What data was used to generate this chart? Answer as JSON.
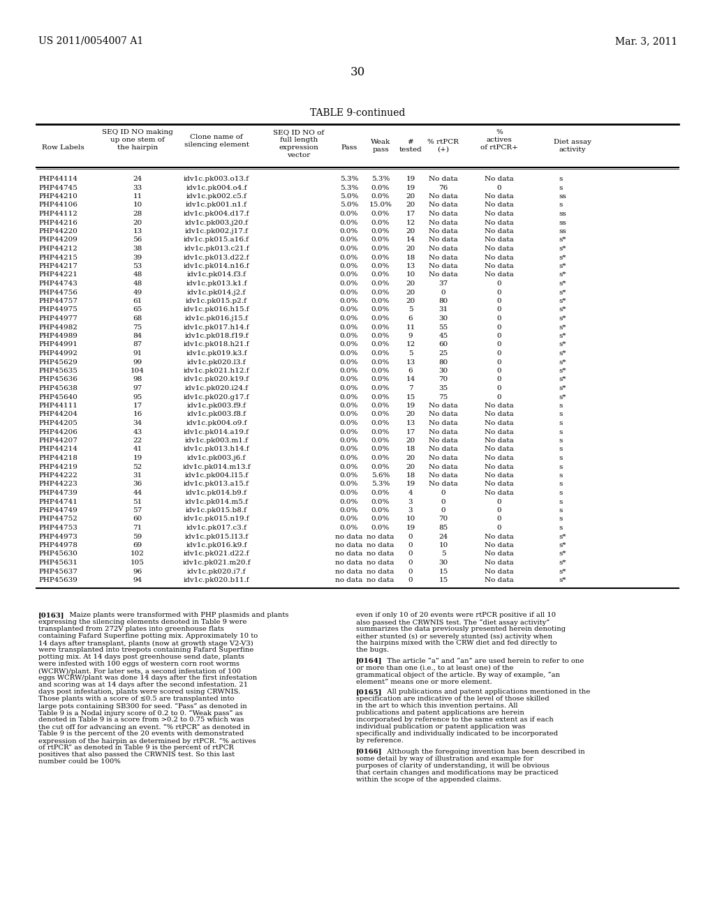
{
  "header_left": "US 2011/0054007 A1",
  "header_right": "Mar. 3, 2011",
  "page_number": "30",
  "table_title": "TABLE 9-continued",
  "col_headers": {
    "row_labels": "Row Labels",
    "seq_id_stem": [
      "SEQ ID NO making",
      "up one stem of",
      "the hairpin"
    ],
    "clone_name": [
      "Clone name of",
      "silencing element"
    ],
    "seq_id_vector": [
      "SEQ ID NO of",
      "full length",
      "expression",
      "vector"
    ],
    "pass": "Pass",
    "weak_pass": [
      "Weak",
      "pass"
    ],
    "num_tested": [
      "#",
      "tested"
    ],
    "pct_rtpcr": [
      "% rtPCR",
      "(+)"
    ],
    "pct_actives": [
      "%",
      "actives",
      "of rtPCR+"
    ],
    "diet_assay": [
      "Diet assay",
      "activity"
    ]
  },
  "rows": [
    [
      "PHP44114",
      "24",
      "idv1c.pk003.o13.f",
      "",
      "5.3%",
      "5.3%",
      "19",
      "No data",
      "No data",
      "s"
    ],
    [
      "PHP44745",
      "33",
      "idv1c.pk004.o4.f",
      "",
      "5.3%",
      "0.0%",
      "19",
      "76",
      "0",
      "s"
    ],
    [
      "PHP44210",
      "11",
      "idv1c.pk002.c5.f",
      "",
      "5.0%",
      "0.0%",
      "20",
      "No data",
      "No data",
      "ss"
    ],
    [
      "PHP44106",
      "10",
      "idv1c.pk001.n1.f",
      "",
      "5.0%",
      "15.0%",
      "20",
      "No data",
      "No data",
      "s"
    ],
    [
      "PHP44112",
      "28",
      "idv1c.pk004.d17.f",
      "",
      "0.0%",
      "0.0%",
      "17",
      "No data",
      "No data",
      "ss"
    ],
    [
      "PHP44216",
      "20",
      "idv1c.pk003.j20.f",
      "",
      "0.0%",
      "0.0%",
      "12",
      "No data",
      "No data",
      "ss"
    ],
    [
      "PHP44220",
      "13",
      "idv1c.pk002.j17.f",
      "",
      "0.0%",
      "0.0%",
      "20",
      "No data",
      "No data",
      "ss"
    ],
    [
      "PHP44209",
      "56",
      "idv1c.pk015.a16.f",
      "",
      "0.0%",
      "0.0%",
      "14",
      "No data",
      "No data",
      "s*"
    ],
    [
      "PHP44212",
      "38",
      "idv1c.pk013.c21.f",
      "",
      "0.0%",
      "0.0%",
      "20",
      "No data",
      "No data",
      "s*"
    ],
    [
      "PHP44215",
      "39",
      "idv1c.pk013.d22.f",
      "",
      "0.0%",
      "0.0%",
      "18",
      "No data",
      "No data",
      "s*"
    ],
    [
      "PHP44217",
      "53",
      "idv1c.pk014.n16.f",
      "",
      "0.0%",
      "0.0%",
      "13",
      "No data",
      "No data",
      "s*"
    ],
    [
      "PHP44221",
      "48",
      "idv1c.pk014.f3.f",
      "",
      "0.0%",
      "0.0%",
      "10",
      "No data",
      "No data",
      "s*"
    ],
    [
      "PHP44743",
      "48",
      "idv1c.pk013.k1.f",
      "",
      "0.0%",
      "0.0%",
      "20",
      "37",
      "0",
      "s*"
    ],
    [
      "PHP44756",
      "49",
      "idv1c.pk014.j2.f",
      "",
      "0.0%",
      "0.0%",
      "20",
      "0",
      "0",
      "s*"
    ],
    [
      "PHP44757",
      "61",
      "idv1c.pk015.p2.f",
      "",
      "0.0%",
      "0.0%",
      "20",
      "80",
      "0",
      "s*"
    ],
    [
      "PHP44975",
      "65",
      "idv1c.pk016.h15.f",
      "",
      "0.0%",
      "0.0%",
      "5",
      "31",
      "0",
      "s*"
    ],
    [
      "PHP44977",
      "68",
      "idv1c.pk016.j15.f",
      "",
      "0.0%",
      "0.0%",
      "6",
      "30",
      "0",
      "s*"
    ],
    [
      "PHP44982",
      "75",
      "idv1c.pk017.h14.f",
      "",
      "0.0%",
      "0.0%",
      "11",
      "55",
      "0",
      "s*"
    ],
    [
      "PHP44989",
      "84",
      "idv1c.pk018.f19.f",
      "",
      "0.0%",
      "0.0%",
      "9",
      "45",
      "0",
      "s*"
    ],
    [
      "PHP44991",
      "87",
      "idv1c.pk018.h21.f",
      "",
      "0.0%",
      "0.0%",
      "12",
      "60",
      "0",
      "s*"
    ],
    [
      "PHP44992",
      "91",
      "idv1c.pk019.k3.f",
      "",
      "0.0%",
      "0.0%",
      "5",
      "25",
      "0",
      "s*"
    ],
    [
      "PHP45629",
      "99",
      "idv1c.pk020.l3.f",
      "",
      "0.0%",
      "0.0%",
      "13",
      "80",
      "0",
      "s*"
    ],
    [
      "PHP45635",
      "104",
      "idv1c.pk021.h12.f",
      "",
      "0.0%",
      "0.0%",
      "6",
      "30",
      "0",
      "s*"
    ],
    [
      "PHP45636",
      "98",
      "idv1c.pk020.k19.f",
      "",
      "0.0%",
      "0.0%",
      "14",
      "70",
      "0",
      "s*"
    ],
    [
      "PHP45638",
      "97",
      "idv1c.pk020.i24.f",
      "",
      "0.0%",
      "0.0%",
      "7",
      "35",
      "0",
      "s*"
    ],
    [
      "PHP45640",
      "95",
      "idv1c.pk020.g17.f",
      "",
      "0.0%",
      "0.0%",
      "15",
      "75",
      "0",
      "s*"
    ],
    [
      "PHP44111",
      "17",
      "idv1c.pk003.f9.f",
      "",
      "0.0%",
      "0.0%",
      "19",
      "No data",
      "No data",
      "s"
    ],
    [
      "PHP44204",
      "16",
      "idv1c.pk003.f8.f",
      "",
      "0.0%",
      "0.0%",
      "20",
      "No data",
      "No data",
      "s"
    ],
    [
      "PHP44205",
      "34",
      "idv1c.pk004.o9.f",
      "",
      "0.0%",
      "0.0%",
      "13",
      "No data",
      "No data",
      "s"
    ],
    [
      "PHP44206",
      "43",
      "idv1c.pk014.a19.f",
      "",
      "0.0%",
      "0.0%",
      "17",
      "No data",
      "No data",
      "s"
    ],
    [
      "PHP44207",
      "22",
      "idv1c.pk003.m1.f",
      "",
      "0.0%",
      "0.0%",
      "20",
      "No data",
      "No data",
      "s"
    ],
    [
      "PHP44214",
      "41",
      "idv1c.pk013.h14.f",
      "",
      "0.0%",
      "0.0%",
      "18",
      "No data",
      "No data",
      "s"
    ],
    [
      "PHP44218",
      "19",
      "idv1c.pk003.j6.f",
      "",
      "0.0%",
      "0.0%",
      "20",
      "No data",
      "No data",
      "s"
    ],
    [
      "PHP44219",
      "52",
      "idv1c.pk014.m13.f",
      "",
      "0.0%",
      "0.0%",
      "20",
      "No data",
      "No data",
      "s"
    ],
    [
      "PHP44222",
      "31",
      "idv1c.pk004.l15.f",
      "",
      "0.0%",
      "5.6%",
      "18",
      "No data",
      "No data",
      "s"
    ],
    [
      "PHP44223",
      "36",
      "idv1c.pk013.a15.f",
      "",
      "0.0%",
      "5.3%",
      "19",
      "No data",
      "No data",
      "s"
    ],
    [
      "PHP44739",
      "44",
      "idv1c.pk014.b9.f",
      "",
      "0.0%",
      "0.0%",
      "4",
      "0",
      "No data",
      "s"
    ],
    [
      "PHP44741",
      "51",
      "idv1c.pk014.m5.f",
      "",
      "0.0%",
      "0.0%",
      "3",
      "0",
      "0",
      "s"
    ],
    [
      "PHP44749",
      "57",
      "idv1c.pk015.b8.f",
      "",
      "0.0%",
      "0.0%",
      "3",
      "0",
      "0",
      "s"
    ],
    [
      "PHP44752",
      "60",
      "idv1c.pk015.n19.f",
      "",
      "0.0%",
      "0.0%",
      "10",
      "70",
      "0",
      "s"
    ],
    [
      "PHP44753",
      "71",
      "idv1c.pk017.c3.f",
      "",
      "0.0%",
      "0.0%",
      "19",
      "85",
      "0",
      "s"
    ],
    [
      "PHP44973",
      "59",
      "idv1c.pk015.l13.f",
      "",
      "no data",
      "no data",
      "0",
      "24",
      "No data",
      "s*"
    ],
    [
      "PHP44978",
      "69",
      "idv1c.pk016.k9.f",
      "",
      "no data",
      "no data",
      "0",
      "10",
      "No data",
      "s*"
    ],
    [
      "PHP45630",
      "102",
      "idv1c.pk021.d22.f",
      "",
      "no data",
      "no data",
      "0",
      "5",
      "No data",
      "s*"
    ],
    [
      "PHP45631",
      "105",
      "idv1c.pk021.m20.f",
      "",
      "no data",
      "no data",
      "0",
      "30",
      "No data",
      "s*"
    ],
    [
      "PHP45637",
      "96",
      "idv1c.pk020.i7.f",
      "",
      "no data",
      "no data",
      "0",
      "15",
      "No data",
      "s*"
    ],
    [
      "PHP45639",
      "94",
      "idv1c.pk020.b11.f",
      "",
      "no data",
      "no data",
      "0",
      "15",
      "No data",
      "s*"
    ]
  ],
  "paragraphs": [
    {
      "tag": "[0163]",
      "text": "Maize plants were transformed with PHP plasmids and plants expressing the silencing elements denoted in Table 9 were transplanted from 272V plates into greenhouse flats containing Fafard Superfine potting mix. Approximately 10 to 14 days after transplant, plants (now at growth stage V2-V3) were transplanted into treepots containing Fafard Superfine potting mix. At 14 days post greenhouse send date, plants were infested with 100 eggs of western corn root worms (WCRW)/plant. For later sets, a second infestation of 100 eggs WCRW/plant was done 14 days after the first infestation and scoring was at 14 days after the second infestation. 21 days post infestation, plants were scored using CRWNIS. Those plants with a score of ≤0.5 are transplanted into large pots containing SB300 for seed. “Pass” as denoted in Table 9 is a Nodal injury score of 0.2 to 0. “Weak pass” as denoted in Table 9 is a score from >0.2 to 0.75 which was the cut off for advancing an event. “% rtPCR” as denoted in Table 9 is the percent of the 20 events with demonstrated expression of the hairpin as determined by rtPCR. “% actives of rtPCR” as denoted in Table 9 is the percent of rtPCR positives that also passed the CRWNIS test. So this last number could be 100%"
    },
    {
      "tag": "",
      "text": "even if only 10 of 20 events were rtPCR positive if all 10 also passed the CRWNIS test. The “diet assay activity” summarizes the data previously presented herein denoting either stunted (s) or severely stunted (ss) activity when the hairpins mixed with the CRW diet and fed directly to the bugs."
    },
    {
      "tag": "[0164]",
      "text": "The article “a” and “an” are used herein to refer to one or more than one (i.e., to at least one) of the grammatical object of the article. By way of example, “an element” means one or more element."
    },
    {
      "tag": "[0165]",
      "text": "All publications and patent applications mentioned in the specification are indicative of the level of those skilled in the art to which this invention pertains. All publications and patent applications are herein incorporated by reference to the same extent as if each individual publication or patent application was specifically and individually indicated to be incorporated by reference."
    },
    {
      "tag": "[0166]",
      "text": "Although the foregoing invention has been described in some detail by way of illustration and example for purposes of clarity of understanding, it will be obvious that certain changes and modifications may be practiced within the scope of the appended claims."
    }
  ]
}
